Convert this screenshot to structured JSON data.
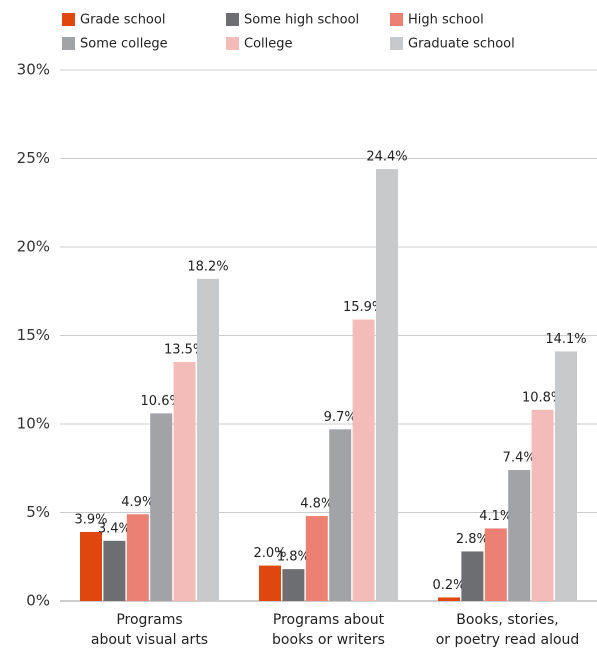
{
  "chart_data": {
    "type": "bar",
    "categories": [
      [
        "Programs",
        "about visual arts"
      ],
      [
        "Programs about",
        "books or writers"
      ],
      [
        "Books, stories,",
        "or poetry read aloud"
      ]
    ],
    "series": [
      {
        "name": "Grade school",
        "color": "#e0470f",
        "values": [
          3.9,
          2.0,
          0.2
        ],
        "value_labels": [
          "3.9%",
          "2.0%",
          "0.2%"
        ]
      },
      {
        "name": "Some high school",
        "color": "#6d6e71",
        "values": [
          3.4,
          1.8,
          2.8
        ],
        "value_labels": [
          "3.4%",
          "1.8%",
          "2.8%"
        ]
      },
      {
        "name": "High school",
        "color": "#ec8073",
        "values": [
          4.9,
          4.8,
          4.1
        ],
        "value_labels": [
          "4.9%",
          "4.8%",
          "4.1%"
        ]
      },
      {
        "name": "Some college",
        "color": "#a2a3a6",
        "values": [
          10.6,
          9.7,
          7.4
        ],
        "value_labels": [
          "10.6%",
          "9.7%",
          "7.4%"
        ]
      },
      {
        "name": "College",
        "color": "#f4bcb8",
        "values": [
          13.5,
          15.9,
          10.8
        ],
        "value_labels": [
          "13.5%",
          "15.9%",
          "10.8%"
        ]
      },
      {
        "name": "Graduate school",
        "color": "#c8c9cb",
        "values": [
          18.2,
          24.4,
          14.1
        ],
        "value_labels": [
          "18.2%",
          "24.4%",
          "14.1%"
        ]
      }
    ],
    "ylim": [
      0,
      30
    ],
    "yticks": [
      {
        "value": 0,
        "label": "0%"
      },
      {
        "value": 5,
        "label": "5%"
      },
      {
        "value": 10,
        "label": "10%"
      },
      {
        "value": 15,
        "label": "15%"
      },
      {
        "value": 20,
        "label": "20%"
      },
      {
        "value": 25,
        "label": "25%"
      },
      {
        "value": 30,
        "label": "30%"
      }
    ],
    "grid": true
  }
}
